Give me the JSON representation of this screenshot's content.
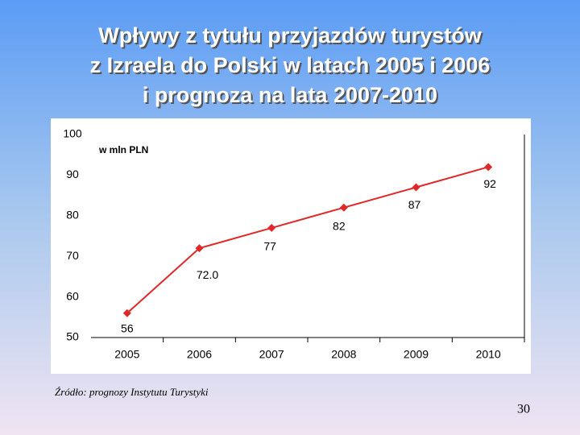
{
  "chart_data": {
    "type": "line",
    "title": [
      "Wpływy z tytułu przyjazdów turystów",
      "z Izraela do Polski w latach 2005 i 2006",
      "i prognoza na lata 2007-2010"
    ],
    "annotation": "w mln PLN",
    "categories": [
      "2005",
      "2006",
      "2007",
      "2008",
      "2009",
      "2010"
    ],
    "series": [
      {
        "color": "#e02828",
        "values": [
          56,
          72,
          77,
          82,
          87,
          92
        ],
        "value_labels": [
          "56",
          "72.0",
          "77",
          "82",
          "87",
          "92"
        ]
      }
    ],
    "ylim": [
      50,
      100
    ],
    "yticks": [
      50,
      60,
      70,
      80,
      90,
      100
    ]
  },
  "source": "Źródło: prognozy Instytutu Turystyki",
  "page_number": "30"
}
